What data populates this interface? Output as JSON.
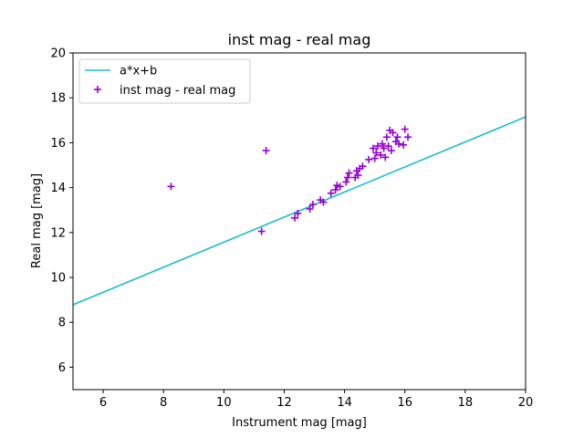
{
  "chart_data": {
    "type": "scatter",
    "title": "inst mag - real mag",
    "xlabel": "Instrument mag [mag]",
    "ylabel": "Real mag [mag]",
    "xlim": [
      5,
      20
    ],
    "ylim": [
      5,
      20
    ],
    "xticks": [
      "6",
      "8",
      "10",
      "12",
      "14",
      "16",
      "18",
      "20"
    ],
    "yticks": [
      "6",
      "8",
      "10",
      "12",
      "14",
      "16",
      "18",
      "20"
    ],
    "grid": false,
    "legend_position": "upper-left",
    "colors": {
      "fit_line": "#17becf",
      "points": "#9400d3"
    },
    "fit_line": {
      "name": "a*x+b",
      "x": [
        5,
        20
      ],
      "y": [
        8.78,
        17.15
      ]
    },
    "series": [
      {
        "name": "inst mag - real mag",
        "points": [
          [
            8.25,
            14.05
          ],
          [
            11.25,
            12.05
          ],
          [
            11.4,
            15.65
          ],
          [
            12.35,
            12.65
          ],
          [
            12.45,
            12.85
          ],
          [
            12.85,
            13.05
          ],
          [
            12.95,
            13.25
          ],
          [
            13.2,
            13.45
          ],
          [
            13.3,
            13.35
          ],
          [
            13.55,
            13.75
          ],
          [
            13.7,
            13.9
          ],
          [
            13.75,
            14.1
          ],
          [
            13.85,
            14.05
          ],
          [
            14.05,
            14.25
          ],
          [
            14.1,
            14.45
          ],
          [
            14.15,
            14.65
          ],
          [
            14.35,
            14.45
          ],
          [
            14.4,
            14.75
          ],
          [
            14.45,
            14.55
          ],
          [
            14.5,
            14.85
          ],
          [
            14.6,
            14.95
          ],
          [
            14.8,
            15.25
          ],
          [
            14.95,
            15.75
          ],
          [
            15.0,
            15.3
          ],
          [
            15.05,
            15.55
          ],
          [
            15.1,
            15.85
          ],
          [
            15.2,
            15.45
          ],
          [
            15.25,
            15.95
          ],
          [
            15.3,
            15.75
          ],
          [
            15.35,
            15.35
          ],
          [
            15.4,
            16.25
          ],
          [
            15.45,
            15.85
          ],
          [
            15.5,
            16.55
          ],
          [
            15.55,
            15.65
          ],
          [
            15.6,
            16.45
          ],
          [
            15.7,
            16.05
          ],
          [
            15.75,
            16.25
          ],
          [
            15.8,
            15.95
          ],
          [
            15.95,
            15.9
          ],
          [
            16.0,
            16.6
          ],
          [
            16.1,
            16.25
          ]
        ]
      }
    ]
  }
}
